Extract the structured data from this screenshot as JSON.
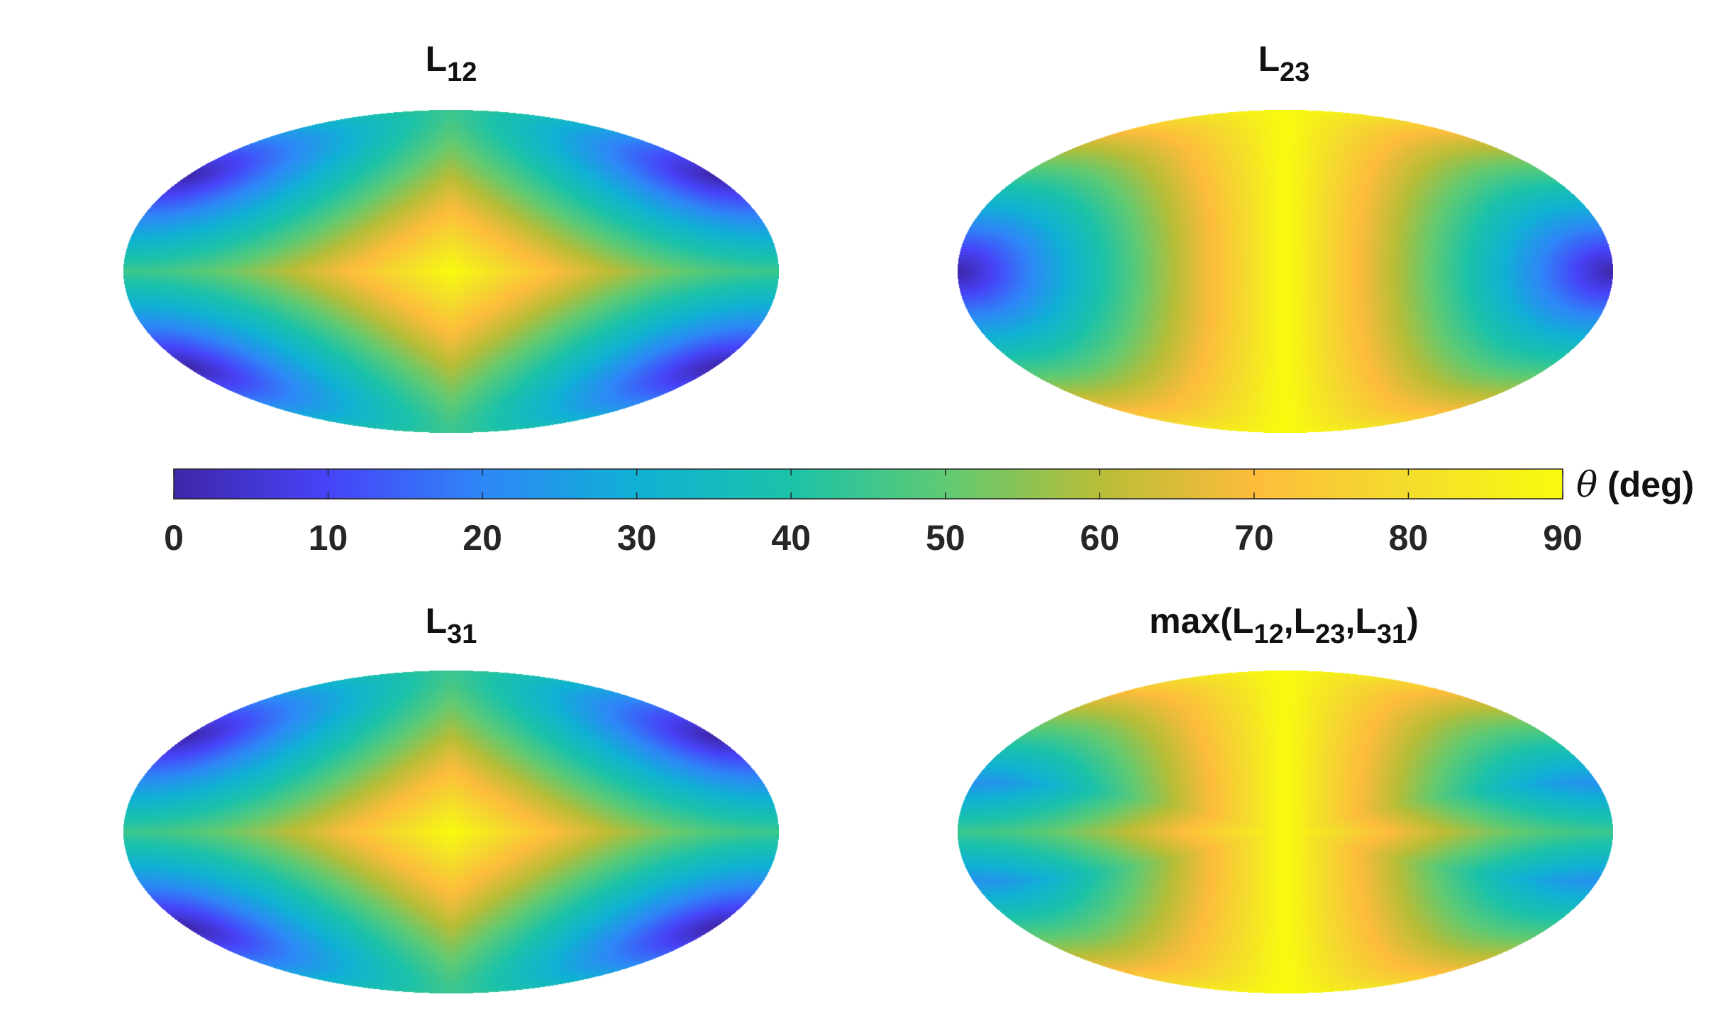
{
  "chart_data": {
    "type": "heatmap",
    "projection": "mollweide",
    "panels": [
      {
        "title_base": "L",
        "title_sub": "12",
        "field": "L12",
        "minima_lonlat_deg": [
          [
            -60,
            55
          ],
          [
            120,
            -55
          ]
        ]
      },
      {
        "title_base": "L",
        "title_sub": "23",
        "field": "L23",
        "minima_lonlat_deg": [
          [
            -90,
            0
          ],
          [
            90,
            0
          ]
        ]
      },
      {
        "title_base": "L",
        "title_sub": "31",
        "field": "L31",
        "minima_lonlat_deg": [
          [
            60,
            55
          ],
          [
            -120,
            -55
          ]
        ]
      },
      {
        "title_parts": [
          "max(L",
          "12",
          ",L",
          "23",
          ",L",
          "31",
          ")"
        ],
        "field": "max(L12,L23,L31)"
      }
    ],
    "colorbar": {
      "label_symbol": "θ",
      "label_text": " (deg)",
      "range": [
        0,
        90
      ],
      "ticks": [
        0,
        10,
        20,
        30,
        40,
        50,
        60,
        70,
        80,
        90
      ],
      "colormap": "parula",
      "colormap_stops": [
        "#3e26a8",
        "#4743f8",
        "#2e87f7",
        "#10b1d4",
        "#1cc2a9",
        "#5fca73",
        "#b8bd37",
        "#fdbc3c",
        "#f4dd2c",
        "#f9fb0e"
      ]
    }
  }
}
